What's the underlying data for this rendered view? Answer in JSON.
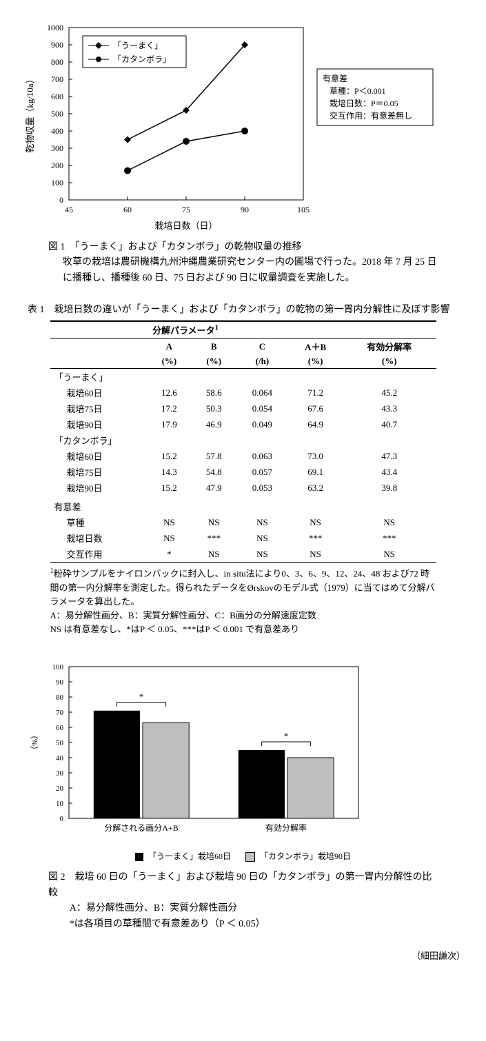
{
  "fig1": {
    "type": "line",
    "title_y": "乾物収量（kg/10a）",
    "title_x": "栽培日数（日）",
    "x_ticks": [
      45,
      60,
      75,
      90,
      105
    ],
    "y_ticks": [
      0,
      100,
      200,
      300,
      400,
      500,
      600,
      700,
      800,
      900,
      1000
    ],
    "xlim": [
      45,
      105
    ],
    "ylim": [
      0,
      1000
    ],
    "series": [
      {
        "name": "「うーまく」",
        "marker": "diamond",
        "color": "#000000",
        "points": [
          [
            60,
            350
          ],
          [
            75,
            520
          ],
          [
            90,
            900
          ]
        ]
      },
      {
        "name": "「カタンボラ」",
        "marker": "circle",
        "color": "#000000",
        "points": [
          [
            60,
            170
          ],
          [
            75,
            340
          ],
          [
            90,
            400
          ]
        ]
      }
    ],
    "side_box": {
      "title": "有意差",
      "lines": [
        "草種：P＜0.001",
        "栽培日数：P＝0.05",
        "交互作用：有意差無し"
      ]
    },
    "caption_title": "図 1　「うーまく」および「カタンボラ」の乾物収量の推移",
    "caption_body": "牧草の栽培は農研機構九州沖縄農業研究センター内の圃場で行った。2018 年 7 月 25 日に播種し、播種後 60 日、75 日および 90 日に収量調査を実施した。",
    "plot_bg": "#ffffff",
    "axis_color": "#000000",
    "tick_fontsize": 12,
    "label_fontsize": 13
  },
  "table1": {
    "title": "表 1　栽培日数の違いが「うーまく」および「カタンボラ」の乾物の第一胃内分解性に及ぼす影響",
    "param_header": "分解パラメータ",
    "param_sup": "1",
    "columns": [
      "A",
      "B",
      "C",
      "A＋B",
      "有効分解率"
    ],
    "units": [
      "(%)",
      "(%)",
      "(/h)",
      "(%)",
      "(%)"
    ],
    "groups": [
      {
        "head": "「うーまく」",
        "rows": [
          {
            "label": "栽培60日",
            "vals": [
              "12.6",
              "58.6",
              "0.064",
              "71.2",
              "45.2"
            ]
          },
          {
            "label": "栽培75日",
            "vals": [
              "17.2",
              "50.3",
              "0.054",
              "67.6",
              "43.3"
            ]
          },
          {
            "label": "栽培90日",
            "vals": [
              "17.9",
              "46.9",
              "0.049",
              "64.9",
              "40.7"
            ]
          }
        ]
      },
      {
        "head": "「カタンボラ」",
        "rows": [
          {
            "label": "栽培60日",
            "vals": [
              "15.2",
              "57.8",
              "0.063",
              "73.0",
              "47.3"
            ]
          },
          {
            "label": "栽培75日",
            "vals": [
              "14.3",
              "54.8",
              "0.057",
              "69.1",
              "43.4"
            ]
          },
          {
            "label": "栽培90日",
            "vals": [
              "15.2",
              "47.9",
              "0.053",
              "63.2",
              "39.8"
            ]
          }
        ]
      }
    ],
    "sig_head": "有意差",
    "sig_rows": [
      {
        "label": "草種",
        "vals": [
          "NS",
          "NS",
          "NS",
          "NS",
          "NS"
        ]
      },
      {
        "label": "栽培日数",
        "vals": [
          "NS",
          "***",
          "NS",
          "***",
          "***"
        ]
      },
      {
        "label": "交互作用",
        "vals": [
          "*",
          "NS",
          "NS",
          "NS",
          "NS"
        ]
      }
    ],
    "footnote1": "粉砕サンプルをナイロンバックに封入し、in situ法により0、3、6、9、12、24、48 および72 時間の第一内分解率を測定した。得られたデータをØrskovのモデル式（1979）に当てはめて分解パラメータを算出した。",
    "footnote1_sup": "1",
    "footnote2": "A：易分解性画分、B：実質分解性画分、C：B画分の分解速度定数",
    "footnote3": "NS は有意差なし、*はP ＜ 0.05、***はP ＜ 0.001 で有意差あり"
  },
  "fig2": {
    "type": "bar",
    "y_ticks": [
      0,
      10,
      20,
      30,
      40,
      50,
      60,
      70,
      80,
      90,
      100
    ],
    "ylim": [
      0,
      100
    ],
    "ylabel": "（%）",
    "categories": [
      "分解される画分A+B",
      "有効分解率"
    ],
    "series": [
      {
        "name": "「うーまく」栽培60日",
        "color": "#000000",
        "values": [
          71,
          45
        ],
        "sig": [
          "*",
          "*"
        ]
      },
      {
        "name": "「カタンボラ」栽培90日",
        "color": "#bfbfbf",
        "border": "#000000",
        "values": [
          63,
          40
        ]
      }
    ],
    "bar_width": 0.32,
    "caption_title": "図 2　栽培 60 日の「うーまく」および栽培 90 日の「カタンボラ」の第一胃内分解性の比較",
    "caption_line1": "A：易分解性画分、B：実質分解性画分",
    "caption_line2": "*は各項目の草種間で有意差あり（P ＜ 0.05）",
    "plot_bg": "#ffffff",
    "axis_color": "#000000"
  },
  "author": "（細田謙次）"
}
